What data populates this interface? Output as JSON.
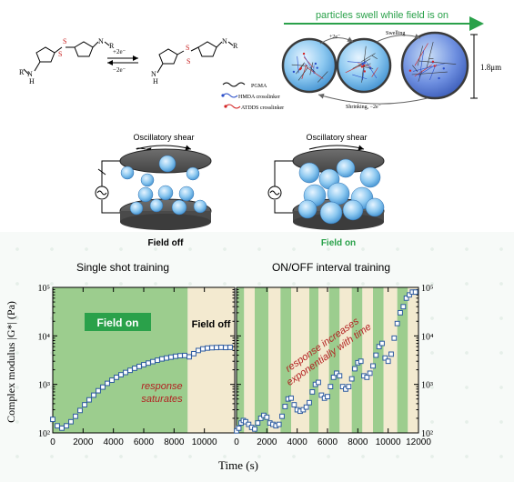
{
  "reaction": {
    "r_left": "R",
    "nh_left": "N",
    "h_left": "H",
    "s": "S",
    "n": "N",
    "reagent_top": "+2e⁻",
    "reagent_bottom": "−2e⁻",
    "r_right": "R",
    "nh_right": "N",
    "h_right": "H"
  },
  "swell": {
    "banner": "particles swell while field is on",
    "step1": "+2e⁻",
    "step2": "Swelling",
    "back": "Shrinking, −2e⁻",
    "size": "1.8μm"
  },
  "legend": [
    {
      "label": "PGMA"
    },
    {
      "label": "HMDA crosslinker",
      "color": "#2b4fc9"
    },
    {
      "label": "ATDDS crosslinker",
      "color": "#d32222"
    }
  ],
  "rheometer": {
    "left_title": "Oscillatory shear",
    "right_title": "Oscillatory shear",
    "left_caption": "Field off",
    "right_caption": "Field on",
    "field_on_color": "#2aa14a"
  },
  "chart_headers": {
    "left": "Single shot training",
    "right": "ON/OFF interval training"
  },
  "chart_data": [
    {
      "type": "scatter",
      "title": "Single shot training",
      "ylabel": "Complex modulus |G*| (Pa)",
      "xlabel": "Time (s)",
      "xlim": [
        0,
        12000
      ],
      "ylim": [
        100,
        100000
      ],
      "yscale": "log",
      "xticks": [
        "0",
        "2000",
        "4000",
        "6000",
        "8000",
        "10000"
      ],
      "yticks": [
        "10²",
        "10³",
        "10⁴",
        "10⁵"
      ],
      "annotations": {
        "field_on": "Field on",
        "field_off": "Field off",
        "response": "response saturates"
      },
      "regions": [
        {
          "label": "Field on",
          "from": 0,
          "to": 8900,
          "color": "#9ccd8e"
        },
        {
          "label": "Field off",
          "from": 8900,
          "to": 12000,
          "color": "#f3ead0"
        }
      ],
      "series": [
        {
          "points": [
            [
              0,
              190
            ],
            [
              300,
              140
            ],
            [
              600,
              125
            ],
            [
              900,
              140
            ],
            [
              1200,
              170
            ],
            [
              1500,
              220
            ],
            [
              1800,
              290
            ],
            [
              2100,
              380
            ],
            [
              2400,
              480
            ],
            [
              2700,
              600
            ],
            [
              3000,
              740
            ],
            [
              3300,
              880
            ],
            [
              3600,
              1050
            ],
            [
              3900,
              1220
            ],
            [
              4200,
              1400
            ],
            [
              4500,
              1580
            ],
            [
              4800,
              1760
            ],
            [
              5100,
              1950
            ],
            [
              5400,
              2150
            ],
            [
              5700,
              2350
            ],
            [
              6000,
              2550
            ],
            [
              6300,
              2750
            ],
            [
              6600,
              2950
            ],
            [
              6900,
              3150
            ],
            [
              7200,
              3350
            ],
            [
              7500,
              3500
            ],
            [
              7800,
              3650
            ],
            [
              8100,
              3800
            ],
            [
              8400,
              3900
            ],
            [
              8700,
              3950
            ],
            [
              9000,
              3700
            ],
            [
              9300,
              4300
            ],
            [
              9600,
              5000
            ],
            [
              9900,
              5400
            ],
            [
              10200,
              5600
            ],
            [
              10500,
              5700
            ],
            [
              10800,
              5750
            ],
            [
              11100,
              5800
            ],
            [
              11400,
              5750
            ],
            [
              11700,
              5800
            ]
          ]
        }
      ]
    },
    {
      "type": "scatter",
      "title": "ON/OFF interval training",
      "xlabel": "Time (s)",
      "xlim": [
        0,
        12000
      ],
      "ylim": [
        100,
        100000
      ],
      "yscale": "log",
      "xticks": [
        "0",
        "2000",
        "4000",
        "6000",
        "8000",
        "10000",
        "12000"
      ],
      "yticks": [
        "10²",
        "10³",
        "10⁴",
        "10⁵"
      ],
      "annotations": {
        "response": "response increases exponentially with time"
      },
      "regions": [
        {
          "from": 0,
          "to": 500,
          "color": "#9ccd8e"
        },
        {
          "from": 500,
          "to": 1200,
          "color": "#f3ead0"
        },
        {
          "from": 1200,
          "to": 2100,
          "color": "#9ccd8e"
        },
        {
          "from": 2100,
          "to": 2900,
          "color": "#f3ead0"
        },
        {
          "from": 2900,
          "to": 3600,
          "color": "#9ccd8e"
        },
        {
          "from": 3600,
          "to": 4800,
          "color": "#f3ead0"
        },
        {
          "from": 4800,
          "to": 5400,
          "color": "#9ccd8e"
        },
        {
          "from": 5400,
          "to": 6100,
          "color": "#f3ead0"
        },
        {
          "from": 6100,
          "to": 6800,
          "color": "#9ccd8e"
        },
        {
          "from": 6800,
          "to": 7600,
          "color": "#f3ead0"
        },
        {
          "from": 7600,
          "to": 8300,
          "color": "#9ccd8e"
        },
        {
          "from": 8300,
          "to": 9000,
          "color": "#f3ead0"
        },
        {
          "from": 9000,
          "to": 9700,
          "color": "#9ccd8e"
        },
        {
          "from": 9700,
          "to": 10600,
          "color": "#f3ead0"
        },
        {
          "from": 10600,
          "to": 11300,
          "color": "#9ccd8e"
        },
        {
          "from": 11300,
          "to": 12000,
          "color": "#f3ead0"
        }
      ],
      "series": [
        {
          "points": [
            [
              0,
              110
            ],
            [
              150,
              125
            ],
            [
              300,
              160
            ],
            [
              450,
              180
            ],
            [
              600,
              170
            ],
            [
              800,
              150
            ],
            [
              1000,
              130
            ],
            [
              1200,
              120
            ],
            [
              1400,
              160
            ],
            [
              1600,
              200
            ],
            [
              1800,
              230
            ],
            [
              2000,
              210
            ],
            [
              2200,
              160
            ],
            [
              2400,
              150
            ],
            [
              2600,
              140
            ],
            [
              2800,
              150
            ],
            [
              3000,
              220
            ],
            [
              3200,
              350
            ],
            [
              3400,
              500
            ],
            [
              3600,
              520
            ],
            [
              3800,
              380
            ],
            [
              4000,
              300
            ],
            [
              4200,
              280
            ],
            [
              4400,
              300
            ],
            [
              4600,
              340
            ],
            [
              4800,
              420
            ],
            [
              5000,
              700
            ],
            [
              5200,
              1000
            ],
            [
              5400,
              1100
            ],
            [
              5600,
              600
            ],
            [
              5800,
              520
            ],
            [
              6000,
              560
            ],
            [
              6200,
              900
            ],
            [
              6400,
              1400
            ],
            [
              6600,
              1700
            ],
            [
              6800,
              1500
            ],
            [
              7000,
              900
            ],
            [
              7200,
              800
            ],
            [
              7400,
              900
            ],
            [
              7600,
              1300
            ],
            [
              7800,
              2100
            ],
            [
              8000,
              2800
            ],
            [
              8200,
              3000
            ],
            [
              8400,
              1500
            ],
            [
              8600,
              1400
            ],
            [
              8800,
              1700
            ],
            [
              9000,
              2400
            ],
            [
              9200,
              4000
            ],
            [
              9400,
              6000
            ],
            [
              9600,
              7000
            ],
            [
              9800,
              3500
            ],
            [
              10000,
              3000
            ],
            [
              10200,
              4200
            ],
            [
              10400,
              9000
            ],
            [
              10600,
              18000
            ],
            [
              10800,
              30000
            ],
            [
              11000,
              40000
            ],
            [
              11200,
              60000
            ],
            [
              11400,
              70000
            ],
            [
              11600,
              80000
            ],
            [
              11800,
              80000
            ]
          ]
        }
      ]
    }
  ]
}
